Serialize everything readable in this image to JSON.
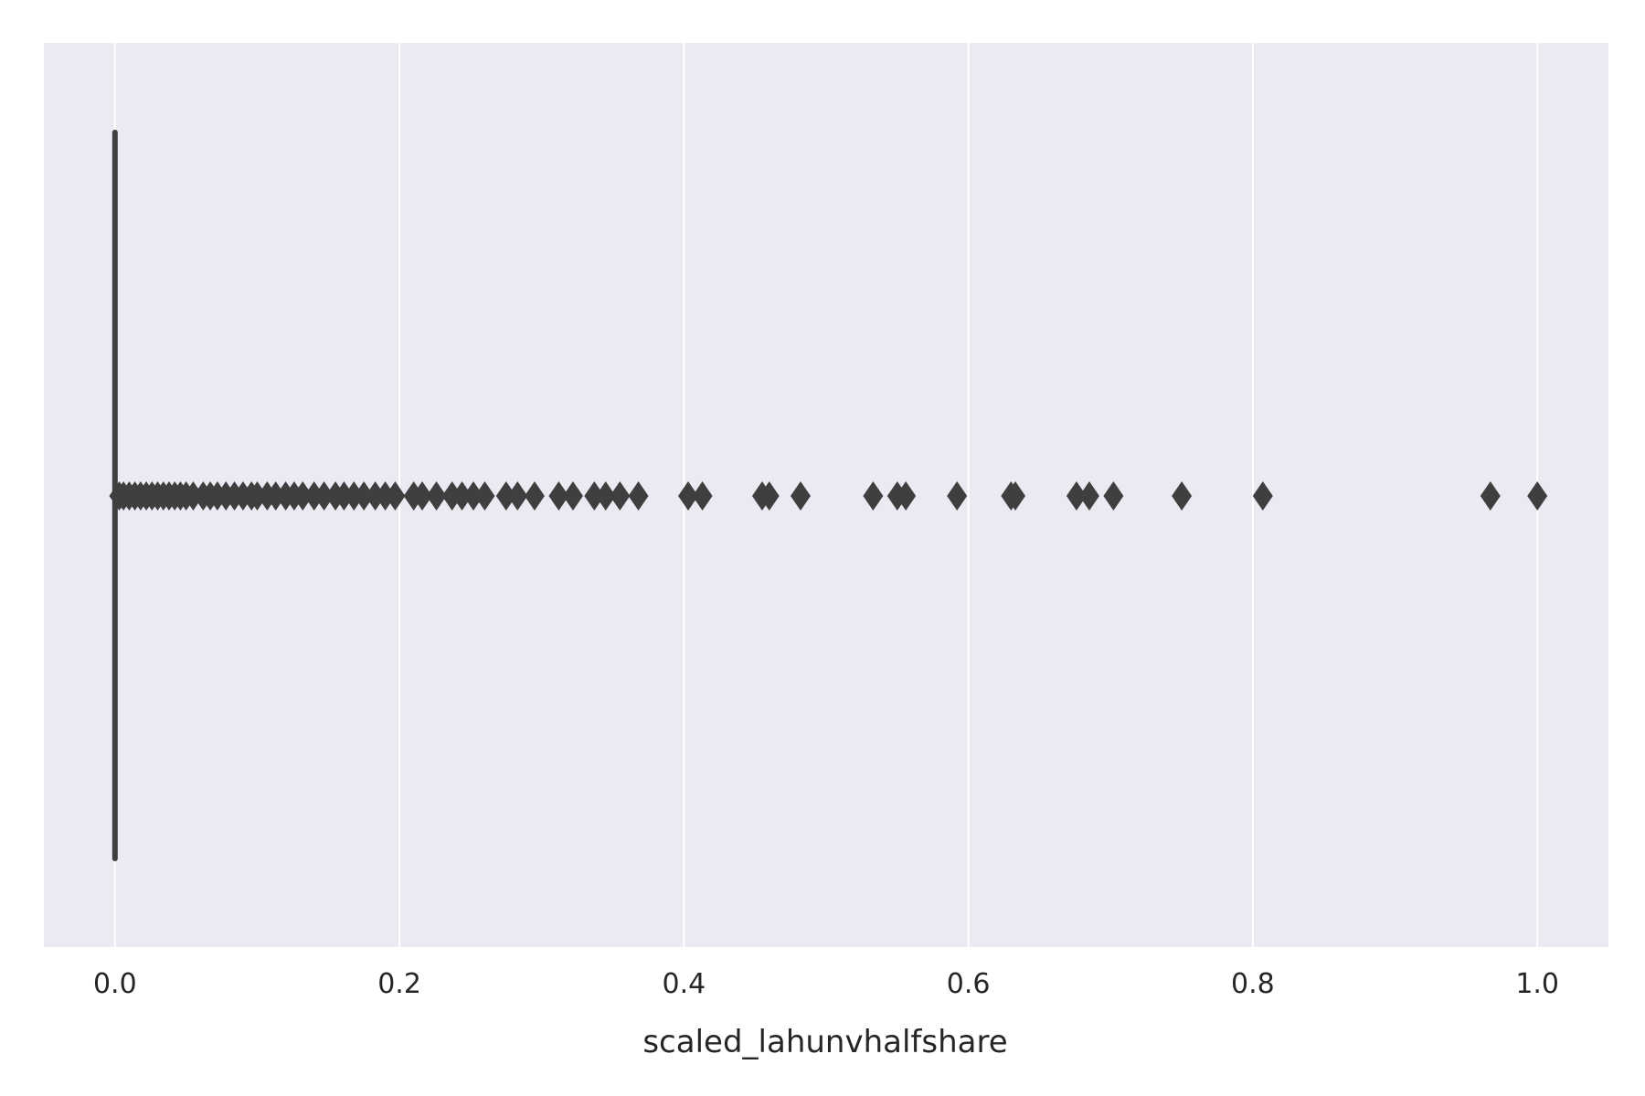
{
  "chart_data": {
    "type": "boxplot",
    "title": "",
    "xlabel": "scaled_lahunvhalfshare",
    "ylabel": "",
    "orientation": "horizontal",
    "xlim": [
      -0.05,
      1.05
    ],
    "xticks": [
      0.0,
      0.2,
      0.4,
      0.6,
      0.8,
      1.0
    ],
    "xtick_labels": [
      "0.0",
      "0.2",
      "0.4",
      "0.6",
      "0.8",
      "1.0"
    ],
    "grid": true,
    "box": {
      "q1": 0.0,
      "median": 0.0,
      "q3": 0.0,
      "whisker_low": 0.0,
      "whisker_high": 0.0
    },
    "outliers": [
      0.003,
      0.006,
      0.01,
      0.014,
      0.018,
      0.022,
      0.026,
      0.03,
      0.034,
      0.038,
      0.042,
      0.046,
      0.05,
      0.055,
      0.062,
      0.067,
      0.072,
      0.078,
      0.084,
      0.09,
      0.096,
      0.1,
      0.107,
      0.113,
      0.12,
      0.126,
      0.132,
      0.14,
      0.147,
      0.155,
      0.161,
      0.168,
      0.175,
      0.183,
      0.19,
      0.197,
      0.21,
      0.216,
      0.226,
      0.237,
      0.244,
      0.252,
      0.26,
      0.275,
      0.283,
      0.295,
      0.312,
      0.322,
      0.337,
      0.345,
      0.355,
      0.368,
      0.403,
      0.413,
      0.455,
      0.46,
      0.482,
      0.533,
      0.55,
      0.556,
      0.592,
      0.63,
      0.633,
      0.676,
      0.685,
      0.702,
      0.75,
      0.807,
      0.967,
      1.0
    ],
    "colors": {
      "background": "#eaeaf2",
      "grid": "#ffffff",
      "marks": "#3f3f3f"
    }
  }
}
